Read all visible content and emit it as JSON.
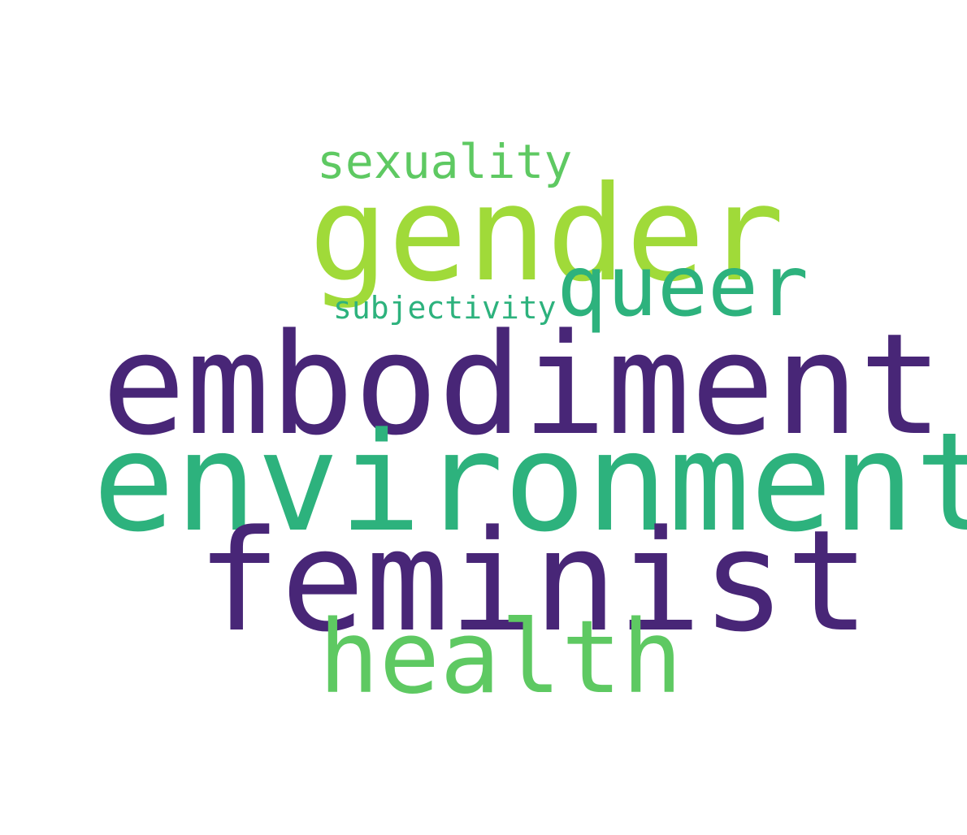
{
  "words": [
    {
      "id": "embodiment",
      "text": "embodiment",
      "color": "#482677"
    },
    {
      "id": "environment",
      "text": "environment",
      "color": "#2db27d"
    },
    {
      "id": "feminist",
      "text": "feminist",
      "color": "#482677"
    },
    {
      "id": "gender",
      "text": "gender",
      "color": "#a0da39"
    },
    {
      "id": "health",
      "text": "health",
      "color": "#5ec962"
    },
    {
      "id": "queer",
      "text": "queer",
      "color": "#2db27d"
    },
    {
      "id": "sexuality",
      "text": "sexuality",
      "color": "#5ec962"
    },
    {
      "id": "subjectivity",
      "text": "subjectivity",
      "color": "#2db27d"
    }
  ]
}
